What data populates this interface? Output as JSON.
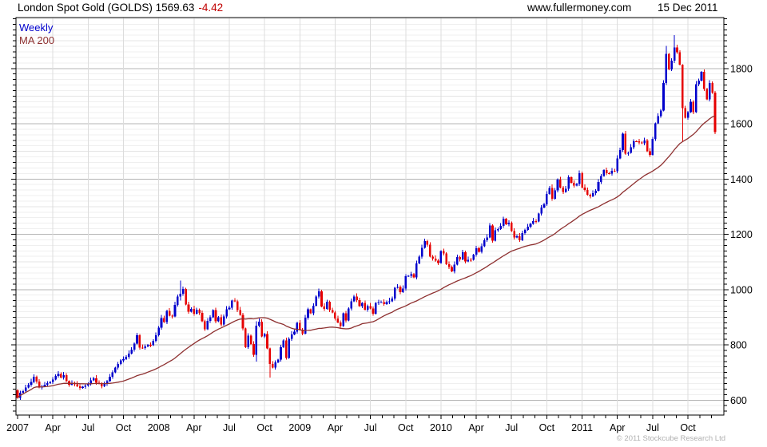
{
  "header": {
    "title": "London Spot Gold (GOLDS) 1569.63",
    "change": "-4.42",
    "website": "www.fullermoney.com",
    "date": "15 Dec 2011"
  },
  "legend": {
    "series": "Weekly",
    "ma": "MA 200"
  },
  "footer": {
    "copyright": "© 2011 Stockcube Research Ltd"
  },
  "colors": {
    "up": "#0000cc",
    "down": "#e60000",
    "ma": "#8e3030",
    "change_red": "#c00000",
    "legend_weekly": "#0000cc",
    "grid_minor": "#efefef",
    "grid_100": "#e4e4e4",
    "grid_major": "#b5b5b5",
    "grid_vertical": "#dcdcdc",
    "axis": "#000000",
    "label": "#000000",
    "copyright_gray": "#b0b0b0"
  },
  "chart_data": {
    "type": "candlestick",
    "title": "London Spot Gold (GOLDS)",
    "last_price": 1569.63,
    "change": -4.42,
    "timeframe": "Weekly",
    "overlay": "MA 200",
    "ma_window": 40,
    "x_axis": {
      "start": "2007-01",
      "months": 60,
      "labels": [
        "2007",
        "Apr",
        "Jul",
        "Oct",
        "2008",
        "Apr",
        "Jul",
        "Oct",
        "2009",
        "Apr",
        "Jul",
        "Oct",
        "2010",
        "Apr",
        "Jul",
        "Oct",
        "2011",
        "Apr",
        "Jul",
        "Oct"
      ]
    },
    "y_axis": {
      "ticks": [
        600,
        800,
        1000,
        1200,
        1400,
        1600,
        1800
      ],
      "minor_step": 20,
      "range": [
        546,
        1984
      ],
      "scale": "linear"
    },
    "first_open": 636,
    "weekly_closes": {
      "2007": [
        608,
        626,
        632,
        645,
        655,
        665,
        685,
        667,
        645,
        650,
        655,
        662,
        665,
        675,
        688,
        694,
        682,
        690,
        668,
        655,
        662,
        657,
        650,
        644,
        648,
        652,
        660,
        672,
        678,
        663,
        660,
        650,
        658,
        668,
        684,
        700,
        717,
        730,
        743,
        748,
        756,
        768,
        783,
        805,
        834,
        790,
        789,
        794,
        800,
        798,
        815,
        834
      ],
      "2008": [
        862,
        897,
        882,
        923,
        905,
        903,
        945,
        975,
        985,
        1002,
        946,
        920,
        930,
        913,
        927,
        915,
        885,
        857,
        886,
        900,
        926,
        885,
        899,
        873,
        903,
        928,
        934,
        960,
        958,
        926,
        908,
        859,
        792,
        833,
        803,
        764,
        870,
        884,
        831,
        839,
        787,
        730,
        718,
        736,
        747,
        791,
        816,
        753,
        821,
        837,
        847,
        880
      ],
      "2009": [
        855,
        841,
        898,
        928,
        914,
        942,
        975,
        993,
        939,
        930,
        956,
        925,
        917,
        895,
        881,
        868,
        914,
        888,
        931,
        958,
        975,
        962,
        940,
        951,
        927,
        940,
        932,
        913,
        951,
        954,
        955,
        948,
        954,
        958,
        967,
        1006,
        1010,
        991,
        1004,
        1048,
        1050,
        1055,
        1044,
        1095,
        1119,
        1151,
        1176,
        1162,
        1119,
        1112,
        1104,
        1096
      ],
      "2010": [
        1139,
        1131,
        1092,
        1081,
        1066,
        1090,
        1118,
        1109,
        1135,
        1102,
        1108,
        1107,
        1126,
        1150,
        1137,
        1157,
        1179,
        1188,
        1232,
        1177,
        1215,
        1219,
        1230,
        1256,
        1236,
        1242,
        1212,
        1188,
        1193,
        1179,
        1205,
        1216,
        1228,
        1237,
        1248,
        1246,
        1275,
        1297,
        1309,
        1346,
        1368,
        1328,
        1359,
        1398,
        1369,
        1353,
        1364,
        1406,
        1386,
        1376,
        1382,
        1421
      ],
      "2011": [
        1369,
        1361,
        1343,
        1337,
        1349,
        1358,
        1389,
        1411,
        1432,
        1421,
        1419,
        1430,
        1428,
        1474,
        1505,
        1564,
        1491,
        1494,
        1515,
        1537,
        1536,
        1532,
        1529,
        1539,
        1500,
        1487,
        1545,
        1601,
        1628,
        1648,
        1747,
        1852,
        1797,
        1828,
        1876,
        1859,
        1814,
        1657,
        1622,
        1642,
        1680,
        1642,
        1743,
        1756,
        1788,
        1725,
        1688,
        1747,
        1712,
        1570
      ]
    },
    "wick_overrides": {
      "60": [
        1033,
        960
      ],
      "88": [
        885,
        740
      ],
      "93": [
        790,
        681
      ],
      "239": [
        1881,
        1740
      ],
      "242": [
        1921,
        1820
      ],
      "245": [
        1815,
        1535
      ],
      "257": [
        1718,
        1562
      ]
    }
  }
}
